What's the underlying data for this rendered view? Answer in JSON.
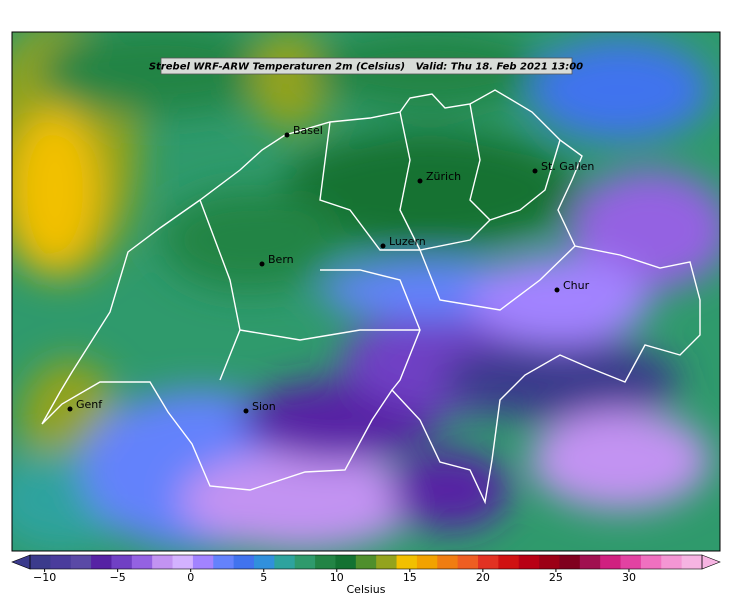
{
  "header": {
    "title": "Strebel WRF-ARW Temperaturen 2m (Celsius)   Valid: Thu 18. Feb 2021 13:00"
  },
  "cities": [
    "Basel",
    "Zürich",
    "St. Gallen",
    "Luzern",
    "Bern",
    "Chur",
    "Genf",
    "Sion"
  ],
  "colorbar": {
    "label": "Celsius",
    "clim": [
      -11,
      35
    ],
    "colors": [
      "#3b3b8c",
      "#4a3c9c",
      "#5a4aa6",
      "#5622a4",
      "#7040c4",
      "#9462e2",
      "#c293f2",
      "#d3b2ff",
      "#a283ff",
      "#6482fc",
      "#4173ee",
      "#3190dc",
      "#2ea39e",
      "#2f9a6c",
      "#238445",
      "#137232",
      "#4f8f2c",
      "#93a31e",
      "#f2c000",
      "#f2a200",
      "#f07d12",
      "#ee5e22",
      "#e23222",
      "#d01212",
      "#b80014",
      "#9c0016",
      "#80001e",
      "#a01050",
      "#d02080",
      "#e242a2",
      "#f070c0",
      "#f496d4",
      "#f6b4e2"
    ],
    "ticks": [
      {
        "value": -10,
        "label": "−10"
      },
      {
        "value": -5,
        "label": "−5"
      },
      0,
      5,
      10,
      15,
      20,
      25,
      30
    ]
  }
}
